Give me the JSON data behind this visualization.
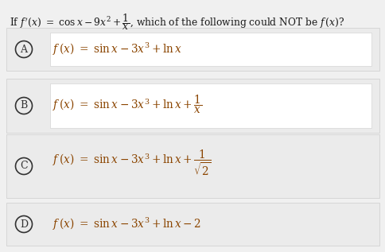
{
  "background_color": "#f0f0f0",
  "inner_box_color": "#ffffff",
  "outer_bg": "#f0f0f0",
  "question_color": "#1a1a1a",
  "formula_color": "#8B4500",
  "circle_color": "#333333",
  "label_color": "#333333",
  "question_fontsize": 9.0,
  "option_fontsize": 10.0,
  "options": [
    {
      "label": "A",
      "has_inner_box": true
    },
    {
      "label": "B",
      "has_inner_box": true
    },
    {
      "label": "C",
      "has_inner_box": false
    },
    {
      "label": "D",
      "has_inner_box": false
    }
  ],
  "formulas": [
    "f(x)  =  sinx - 3x^3 + lnx",
    "f(x)  =  sinx - 3x^3 + lnx + 1/x",
    "f(x)  =  sinx - 3x^3 + lnx + 1/sqrt2",
    "f(x)  =  sinx - 3x^3 + lnx - 2"
  ]
}
